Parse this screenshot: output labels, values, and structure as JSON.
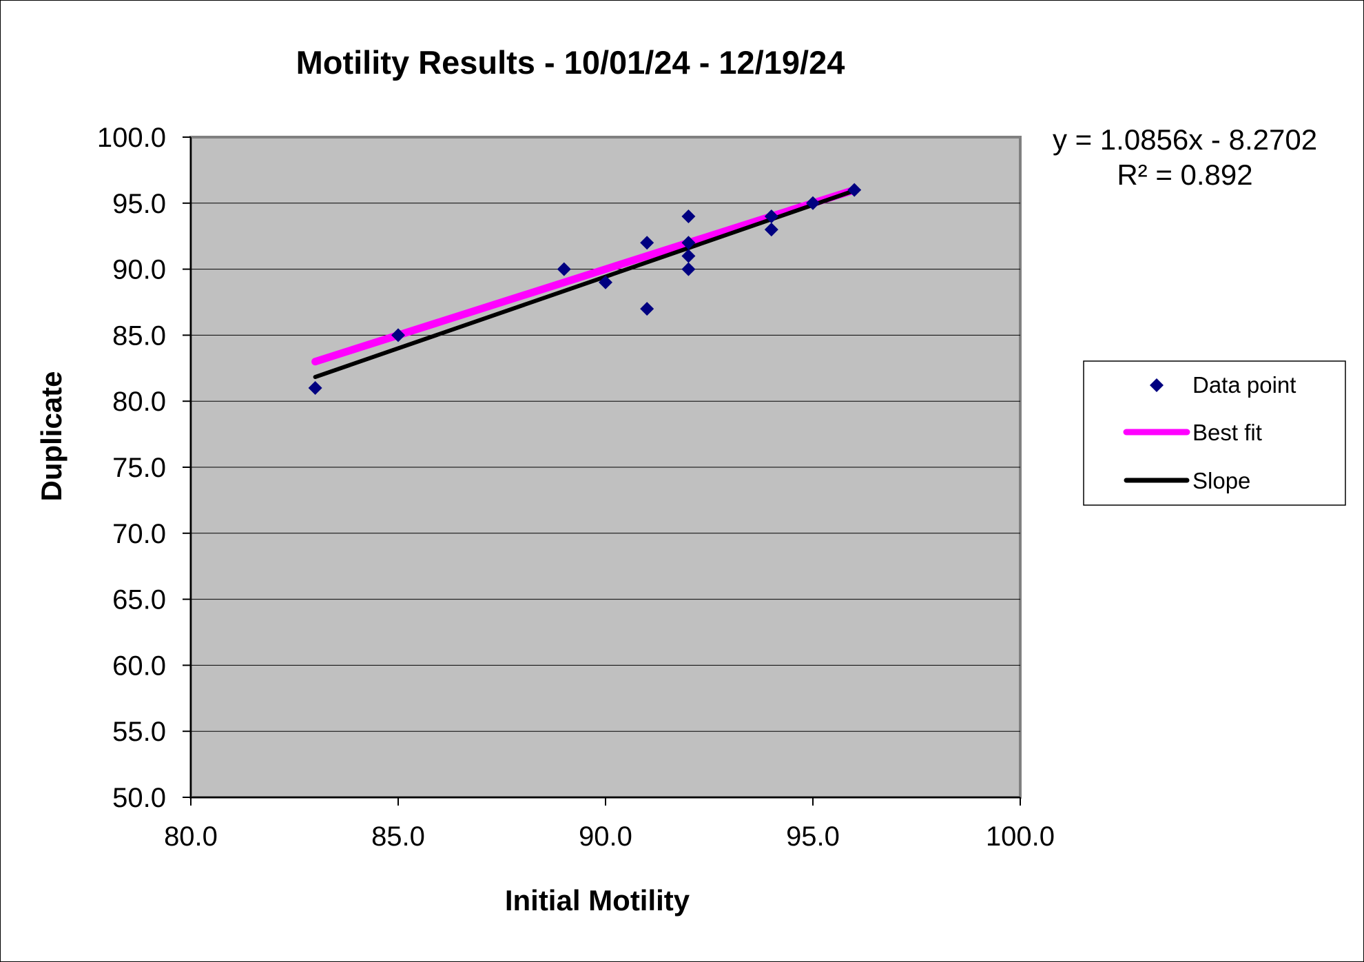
{
  "chart_data": {
    "type": "scatter",
    "title": "Motility Results - 10/01/24 - 12/19/24",
    "xlabel": "Initial Motility",
    "ylabel": "Duplicate",
    "xlim": [
      80,
      100
    ],
    "ylim": [
      50,
      100
    ],
    "x_ticks": [
      "80.0",
      "85.0",
      "90.0",
      "95.0",
      "100.0"
    ],
    "y_ticks": [
      "50.0",
      "55.0",
      "60.0",
      "65.0",
      "70.0",
      "75.0",
      "80.0",
      "85.0",
      "90.0",
      "95.0",
      "100.0"
    ],
    "grid": true,
    "series": [
      {
        "name": "Data point",
        "marker": "diamond",
        "color": "#000080",
        "points": [
          [
            83,
            81
          ],
          [
            85,
            85
          ],
          [
            89,
            90
          ],
          [
            90,
            89
          ],
          [
            91,
            92
          ],
          [
            91,
            87
          ],
          [
            92,
            94
          ],
          [
            92,
            92
          ],
          [
            92,
            91
          ],
          [
            92,
            90
          ],
          [
            94,
            94
          ],
          [
            94,
            93
          ],
          [
            95,
            95
          ],
          [
            96,
            96
          ]
        ]
      },
      {
        "name": "Best fit",
        "kind": "line",
        "color": "#ff00ff",
        "points": [
          [
            83,
            83
          ],
          [
            96,
            96
          ]
        ]
      },
      {
        "name": "Slope",
        "kind": "line",
        "color": "#000000",
        "slope": 1.0856,
        "intercept": -8.2702,
        "x_range": [
          83,
          96
        ]
      }
    ],
    "equation": "y = 1.0856x - 8.2702",
    "r_squared": "R² = 0.892",
    "legend_position": "right",
    "colors": {
      "plot_background": "#c0c0c0",
      "gridline": "#000000",
      "frame": "#808080"
    }
  }
}
